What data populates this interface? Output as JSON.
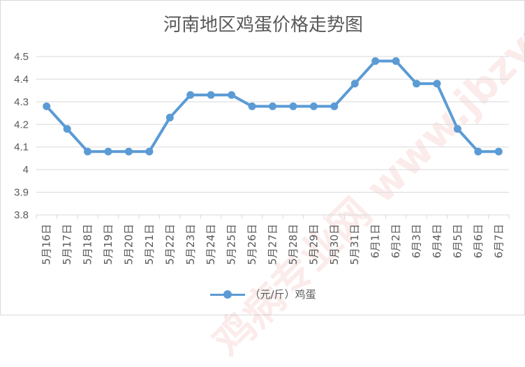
{
  "chart_data": {
    "type": "line",
    "title": "河南地区鸡蛋价格走势图",
    "xlabel": "",
    "ylabel": "",
    "ylim": [
      3.8,
      4.5
    ],
    "yticks": [
      "3.8",
      "3.9",
      "4",
      "4.1",
      "4.2",
      "4.3",
      "4.4",
      "4.5"
    ],
    "grid": true,
    "legend_position": "bottom",
    "categories": [
      "5月16日",
      "5月17日",
      "5月18日",
      "5月19日",
      "5月20日",
      "5月21日",
      "5月22日",
      "5月23日",
      "5月24日",
      "5月25日",
      "5月26日",
      "5月27日",
      "5月28日",
      "5月29日",
      "5月30日",
      "5月31日",
      "6月1日",
      "6月2日",
      "6月3日",
      "6月4日",
      "6月5日",
      "6月6日",
      "6月7日"
    ],
    "series": [
      {
        "name": "（元/斤）鸡蛋",
        "color": "#5b9bd5",
        "values": [
          4.28,
          4.18,
          4.08,
          4.08,
          4.08,
          4.08,
          4.23,
          4.33,
          4.33,
          4.33,
          4.28,
          4.28,
          4.28,
          4.28,
          4.28,
          4.38,
          4.48,
          4.48,
          4.38,
          4.38,
          4.18,
          4.08,
          4.08
        ]
      }
    ]
  },
  "watermark": "鸡病专业网 www.jbzyw.com"
}
